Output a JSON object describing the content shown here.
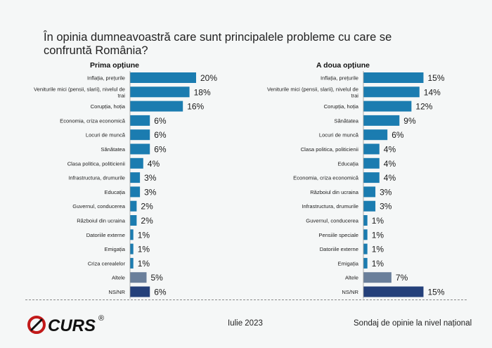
{
  "title": "În opinia dumneavoastră care sunt principalele probleme cu care se confruntă România?",
  "footer": {
    "brand": "CURS",
    "registered": "®",
    "date": "Iulie 2023",
    "survey": "Sondaj de opinie la nivel național"
  },
  "colors": {
    "main": "#1b7cb0",
    "other": "#6a7f9b",
    "nsnr": "#24407a"
  },
  "chart_data": [
    {
      "type": "bar",
      "orientation": "horizontal",
      "title": "Prima opțiune",
      "unit": "%",
      "categories": [
        "Inflația, prețurile",
        "Veniturile mici (pensii, slarii), nivelul de trai",
        "Corupția, hoția",
        "Economia, criza economică",
        "Locuri de muncă",
        "Sănătatea",
        "Clasa politica, politicienii",
        "Infrastructura, drumurile",
        "Educația",
        "Guvernul, conducerea",
        "Războiul din ucraina",
        "Datoriile externe",
        "Emigația",
        "Criza cerealelor",
        "Altele",
        "NS/NR"
      ],
      "values": [
        20,
        18,
        16,
        6,
        6,
        6,
        4,
        3,
        3,
        2,
        2,
        1,
        1,
        1,
        5,
        6
      ],
      "bar_colors": [
        "main",
        "main",
        "main",
        "main",
        "main",
        "main",
        "main",
        "main",
        "main",
        "main",
        "main",
        "main",
        "main",
        "main",
        "other",
        "nsnr"
      ]
    },
    {
      "type": "bar",
      "orientation": "horizontal",
      "title": "A doua opțiune",
      "unit": "%",
      "categories": [
        "Inflația, prețurile",
        "Veniturile mici (pensii, slarii), nivelul de trai",
        "Corupția, hoția",
        "Sănătatea",
        "Locuri de muncă",
        "Clasa politica, politicienii",
        "Educația",
        "Economia, criza economică",
        "Războiul din ucraina",
        "Infrastructura, drumurile",
        "Guvernul, conducerea",
        "Pensiile speciale",
        "Datoriile externe",
        "Emigația",
        "Altele",
        "NS/NR"
      ],
      "values": [
        15,
        14,
        12,
        9,
        6,
        4,
        4,
        4,
        3,
        3,
        1,
        1,
        1,
        1,
        7,
        15
      ],
      "bar_colors": [
        "main",
        "main",
        "main",
        "main",
        "main",
        "main",
        "main",
        "main",
        "main",
        "main",
        "main",
        "main",
        "main",
        "main",
        "other",
        "nsnr"
      ]
    }
  ]
}
